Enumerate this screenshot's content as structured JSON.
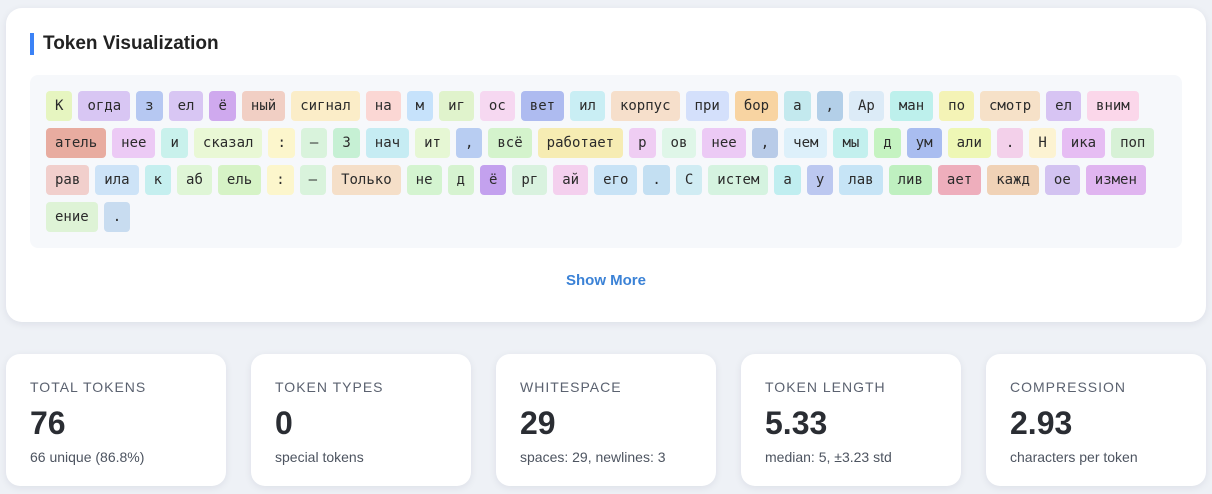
{
  "visualization": {
    "title": "Token Visualization",
    "show_more_label": "Show More",
    "tokens": [
      {
        "t": "К",
        "c": "#e6f5c0"
      },
      {
        "t": "огда",
        "c": "#d8c6f3"
      },
      {
        "t": "з",
        "c": "#b6c8f2"
      },
      {
        "t": "ел",
        "c": "#d8c6f3"
      },
      {
        "t": "ё",
        "c": "#cfa9ee"
      },
      {
        "t": "ный",
        "c": "#f1cfc4"
      },
      {
        "t": "сигнал",
        "c": "#fbedc8"
      },
      {
        "t": "на",
        "c": "#fbd7d4"
      },
      {
        "t": "м",
        "c": "#c6e2fb"
      },
      {
        "t": "иг",
        "c": "#e0f3cc"
      },
      {
        "t": "ос",
        "c": "#f6d8f1"
      },
      {
        "t": "вет",
        "c": "#aebbf0"
      },
      {
        "t": "ил",
        "c": "#c9eef4"
      },
      {
        "t": "корпус",
        "c": "#f6dfcb"
      },
      {
        "t": "при",
        "c": "#d4e0fb"
      },
      {
        "t": "бор",
        "c": "#f8d4a2"
      },
      {
        "t": "а",
        "c": "#c3e9ee"
      },
      {
        "t": ",",
        "c": "#b3cfe8"
      },
      {
        "t": "Ар",
        "c": "#dcebf7"
      },
      {
        "t": "ман",
        "c": "#bdf0ec"
      },
      {
        "t": "по",
        "c": "#f4f3b6"
      },
      {
        "t": "смотр",
        "c": "#f6e1c8"
      },
      {
        "t": "ел",
        "c": "#d7c4f3"
      },
      {
        "t": "вним",
        "c": "#fbd7ea"
      },
      {
        "t": "атель",
        "c": "#e8aca0"
      },
      {
        "t": "нее",
        "c": "#eccaf5"
      },
      {
        "t": "и",
        "c": "#c9f1ec"
      },
      {
        "t": "сказал",
        "c": "#e9f8d5"
      },
      {
        "t": ":",
        "c": "#fcf6cc"
      },
      {
        "t": "–",
        "c": "#d9f3dc"
      },
      {
        "t": "З",
        "c": "#c6f0d4"
      },
      {
        "t": "нач",
        "c": "#c6ecf3"
      },
      {
        "t": "ит",
        "c": "#e6f7d4"
      },
      {
        "t": ",",
        "c": "#b8cdf2"
      },
      {
        "t": "всё",
        "c": "#d4f3cc"
      },
      {
        "t": "работает",
        "c": "#f6ecb3"
      },
      {
        "t": "р",
        "c": "#efcdf3"
      },
      {
        "t": "ов",
        "c": "#dff6e8"
      },
      {
        "t": "нее",
        "c": "#eccaf5"
      },
      {
        "t": ",",
        "c": "#b8cbe8"
      },
      {
        "t": "чем",
        "c": "#ddf0fa"
      },
      {
        "t": "мы",
        "c": "#c3f0ee"
      },
      {
        "t": "д",
        "c": "#c5f3c1"
      },
      {
        "t": "ум",
        "c": "#a9bdf0"
      },
      {
        "t": "али",
        "c": "#eef7b5"
      },
      {
        "t": ".",
        "c": "#f3d0ea"
      },
      {
        "t": "Н",
        "c": "#fcf3d2"
      },
      {
        "t": "ика",
        "c": "#e6bdf3"
      },
      {
        "t": "поп",
        "c": "#d7f1d6"
      },
      {
        "t": "рав",
        "c": "#f1cfcc"
      },
      {
        "t": "ила",
        "c": "#cde3f7"
      },
      {
        "t": "к",
        "c": "#c5efef"
      },
      {
        "t": "аб",
        "c": "#dff6d6"
      },
      {
        "t": "ель",
        "c": "#d6f3c6"
      },
      {
        "t": ":",
        "c": "#fcf6cc"
      },
      {
        "t": "–",
        "c": "#d9f3dc"
      },
      {
        "t": "Только",
        "c": "#f5dfc8"
      },
      {
        "t": "не",
        "c": "#d4f4d0"
      },
      {
        "t": "д",
        "c": "#d6f3d0"
      },
      {
        "t": "ё",
        "c": "#c3a1ee"
      },
      {
        "t": "рг",
        "c": "#d9f2df"
      },
      {
        "t": "ай",
        "c": "#f4d0ee"
      },
      {
        "t": "его",
        "c": "#c8e3f6"
      },
      {
        "t": ".",
        "c": "#c3dff2"
      },
      {
        "t": "С",
        "c": "#d0ecf3"
      },
      {
        "t": "истем",
        "c": "#d5f3e0"
      },
      {
        "t": "а",
        "c": "#c0eef0"
      },
      {
        "t": "у",
        "c": "#bcc8f0"
      },
      {
        "t": "лав",
        "c": "#c6e4f6"
      },
      {
        "t": "лив",
        "c": "#bff0c0"
      },
      {
        "t": "ает",
        "c": "#eeaebc"
      },
      {
        "t": "кажд",
        "c": "#f0d2b6"
      },
      {
        "t": "ое",
        "c": "#d3c3f1"
      },
      {
        "t": "измен",
        "c": "#e0b5f0"
      },
      {
        "t": "ение",
        "c": "#def3d6"
      },
      {
        "t": ".",
        "c": "#c8dcf0"
      }
    ]
  },
  "stats": [
    {
      "label": "TOTAL TOKENS",
      "value": "76",
      "sub": "66 unique (86.8%)"
    },
    {
      "label": "TOKEN TYPES",
      "value": "0",
      "sub": "special tokens"
    },
    {
      "label": "WHITESPACE",
      "value": "29",
      "sub": "spaces: 29, newlines: 3"
    },
    {
      "label": "TOKEN LENGTH",
      "value": "5.33",
      "sub": "median: 5, ±3.23 std"
    },
    {
      "label": "COMPRESSION",
      "value": "2.93",
      "sub": "characters per token"
    }
  ]
}
